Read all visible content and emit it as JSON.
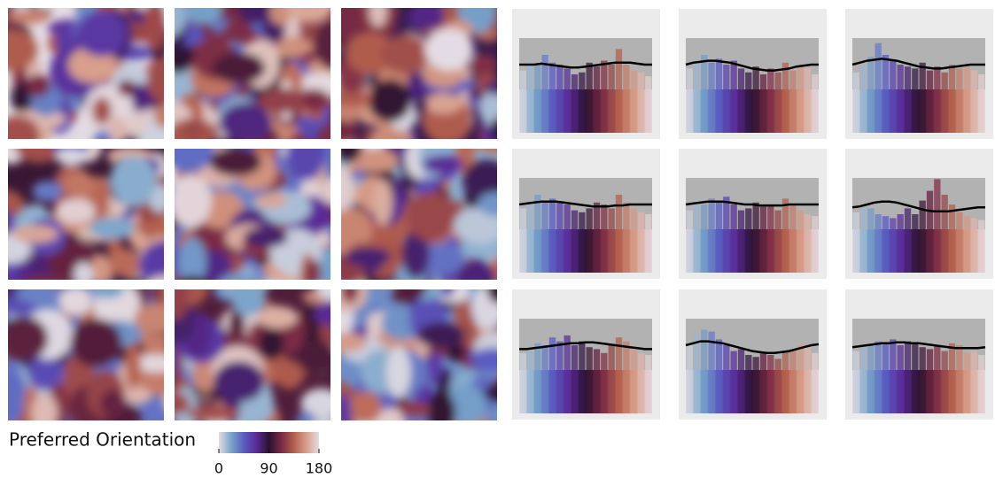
{
  "chart_data": [
    {
      "type": "colorbar",
      "label": "Preferred Orientation",
      "xlim": [
        0,
        180
      ],
      "xticks": [
        0,
        90,
        180
      ],
      "colors": [
        "#e3dbe3",
        "#77a3c9",
        "#5a5cc0",
        "#5a2a96",
        "#2b1330",
        "#7a2a45",
        "#b4604e",
        "#d8a08c",
        "#e3dbe3"
      ]
    },
    {
      "type": "histogram",
      "ylim": [
        0,
        1
      ],
      "bins": [
        0,
        10,
        20,
        30,
        40,
        50,
        60,
        70,
        80,
        90,
        100,
        110,
        120,
        130,
        140,
        150,
        160,
        170,
        180
      ],
      "values": [
        0.64,
        0.74,
        0.7,
        0.8,
        0.72,
        0.7,
        0.66,
        0.6,
        0.62,
        0.72,
        0.68,
        0.74,
        0.7,
        0.86,
        0.7,
        0.64,
        0.62,
        0.58
      ],
      "fit": [
        0.7,
        0.7,
        0.7,
        0.71,
        0.7,
        0.69,
        0.68,
        0.67,
        0.67,
        0.68,
        0.69,
        0.7,
        0.71,
        0.72,
        0.72,
        0.72,
        0.71,
        0.7,
        0.7
      ]
    },
    {
      "type": "histogram",
      "ylim": [
        0,
        1
      ],
      "bins": [
        0,
        10,
        20,
        30,
        40,
        50,
        60,
        70,
        80,
        90,
        100,
        110,
        120,
        130,
        140,
        150,
        160,
        170,
        180
      ],
      "values": [
        0.66,
        0.74,
        0.8,
        0.72,
        0.76,
        0.7,
        0.74,
        0.66,
        0.62,
        0.68,
        0.6,
        0.66,
        0.62,
        0.72,
        0.64,
        0.7,
        0.66,
        0.6
      ],
      "fit": [
        0.7,
        0.72,
        0.73,
        0.74,
        0.74,
        0.73,
        0.72,
        0.7,
        0.68,
        0.66,
        0.65,
        0.64,
        0.64,
        0.65,
        0.66,
        0.68,
        0.69,
        0.7,
        0.7
      ]
    },
    {
      "type": "histogram",
      "ylim": [
        0,
        1
      ],
      "bins": [
        0,
        10,
        20,
        30,
        40,
        50,
        60,
        70,
        80,
        90,
        100,
        110,
        120,
        130,
        140,
        150,
        160,
        170,
        180
      ],
      "values": [
        0.62,
        0.7,
        0.78,
        0.92,
        0.8,
        0.74,
        0.7,
        0.68,
        0.66,
        0.72,
        0.64,
        0.68,
        0.62,
        0.7,
        0.66,
        0.68,
        0.64,
        0.6
      ],
      "fit": [
        0.7,
        0.72,
        0.74,
        0.75,
        0.76,
        0.75,
        0.74,
        0.72,
        0.7,
        0.68,
        0.67,
        0.66,
        0.66,
        0.67,
        0.68,
        0.69,
        0.7,
        0.7,
        0.7
      ]
    },
    {
      "type": "histogram",
      "ylim": [
        0,
        1
      ],
      "bins": [
        0,
        10,
        20,
        30,
        40,
        50,
        60,
        70,
        80,
        90,
        100,
        110,
        120,
        130,
        140,
        150,
        160,
        170,
        180
      ],
      "values": [
        0.66,
        0.74,
        0.8,
        0.74,
        0.76,
        0.72,
        0.7,
        0.64,
        0.62,
        0.66,
        0.72,
        0.7,
        0.66,
        0.8,
        0.72,
        0.66,
        0.62,
        0.6
      ],
      "fit": [
        0.7,
        0.71,
        0.72,
        0.73,
        0.73,
        0.73,
        0.72,
        0.71,
        0.7,
        0.69,
        0.68,
        0.68,
        0.68,
        0.69,
        0.69,
        0.7,
        0.7,
        0.7,
        0.7
      ]
    },
    {
      "type": "histogram",
      "ylim": [
        0,
        1
      ],
      "bins": [
        0,
        10,
        20,
        30,
        40,
        50,
        60,
        70,
        80,
        90,
        100,
        110,
        120,
        130,
        140,
        150,
        160,
        170,
        180
      ],
      "values": [
        0.64,
        0.72,
        0.7,
        0.76,
        0.74,
        0.78,
        0.7,
        0.64,
        0.66,
        0.72,
        0.68,
        0.7,
        0.64,
        0.76,
        0.7,
        0.64,
        0.6,
        0.58
      ],
      "fit": [
        0.7,
        0.71,
        0.72,
        0.73,
        0.73,
        0.73,
        0.72,
        0.71,
        0.7,
        0.7,
        0.69,
        0.69,
        0.69,
        0.69,
        0.7,
        0.7,
        0.7,
        0.7,
        0.7
      ]
    },
    {
      "type": "histogram",
      "ylim": [
        0,
        1
      ],
      "bins": [
        0,
        10,
        20,
        30,
        40,
        50,
        60,
        70,
        80,
        90,
        100,
        110,
        120,
        130,
        140,
        150,
        160,
        170,
        180
      ],
      "values": [
        0.62,
        0.7,
        0.66,
        0.6,
        0.58,
        0.56,
        0.6,
        0.66,
        0.6,
        0.74,
        0.84,
        0.96,
        0.8,
        0.7,
        0.62,
        0.58,
        0.56,
        0.54
      ],
      "fit": [
        0.67,
        0.68,
        0.7,
        0.72,
        0.73,
        0.73,
        0.72,
        0.7,
        0.68,
        0.66,
        0.64,
        0.63,
        0.63,
        0.63,
        0.64,
        0.65,
        0.66,
        0.67,
        0.67
      ]
    },
    {
      "type": "histogram",
      "ylim": [
        0,
        1
      ],
      "bins": [
        0,
        10,
        20,
        30,
        40,
        50,
        60,
        70,
        80,
        90,
        100,
        110,
        120,
        130,
        140,
        150,
        160,
        170,
        180
      ],
      "values": [
        0.62,
        0.66,
        0.72,
        0.7,
        0.78,
        0.74,
        0.8,
        0.7,
        0.74,
        0.68,
        0.66,
        0.62,
        0.7,
        0.78,
        0.74,
        0.66,
        0.62,
        0.6
      ],
      "fit": [
        0.66,
        0.66,
        0.67,
        0.68,
        0.69,
        0.7,
        0.71,
        0.72,
        0.72,
        0.73,
        0.73,
        0.72,
        0.71,
        0.7,
        0.69,
        0.68,
        0.67,
        0.66,
        0.66
      ]
    },
    {
      "type": "histogram",
      "ylim": [
        0,
        1
      ],
      "bins": [
        0,
        10,
        20,
        30,
        40,
        50,
        60,
        70,
        80,
        90,
        100,
        110,
        120,
        130,
        140,
        150,
        160,
        170,
        180
      ],
      "values": [
        0.7,
        0.82,
        0.86,
        0.84,
        0.76,
        0.7,
        0.64,
        0.66,
        0.6,
        0.58,
        0.62,
        0.6,
        0.56,
        0.64,
        0.66,
        0.7,
        0.68,
        0.62
      ],
      "fit": [
        0.7,
        0.72,
        0.74,
        0.74,
        0.73,
        0.72,
        0.7,
        0.68,
        0.66,
        0.64,
        0.63,
        0.62,
        0.62,
        0.63,
        0.64,
        0.66,
        0.68,
        0.7,
        0.71
      ]
    },
    {
      "type": "histogram",
      "ylim": [
        0,
        1
      ],
      "bins": [
        0,
        10,
        20,
        30,
        40,
        50,
        60,
        70,
        80,
        90,
        100,
        110,
        120,
        130,
        140,
        150,
        160,
        170,
        180
      ],
      "values": [
        0.64,
        0.68,
        0.7,
        0.74,
        0.72,
        0.76,
        0.7,
        0.74,
        0.72,
        0.68,
        0.66,
        0.7,
        0.64,
        0.72,
        0.7,
        0.62,
        0.64,
        0.6
      ],
      "fit": [
        0.68,
        0.69,
        0.7,
        0.71,
        0.72,
        0.72,
        0.73,
        0.73,
        0.72,
        0.72,
        0.71,
        0.7,
        0.69,
        0.68,
        0.67,
        0.67,
        0.67,
        0.67,
        0.68
      ]
    }
  ]
}
